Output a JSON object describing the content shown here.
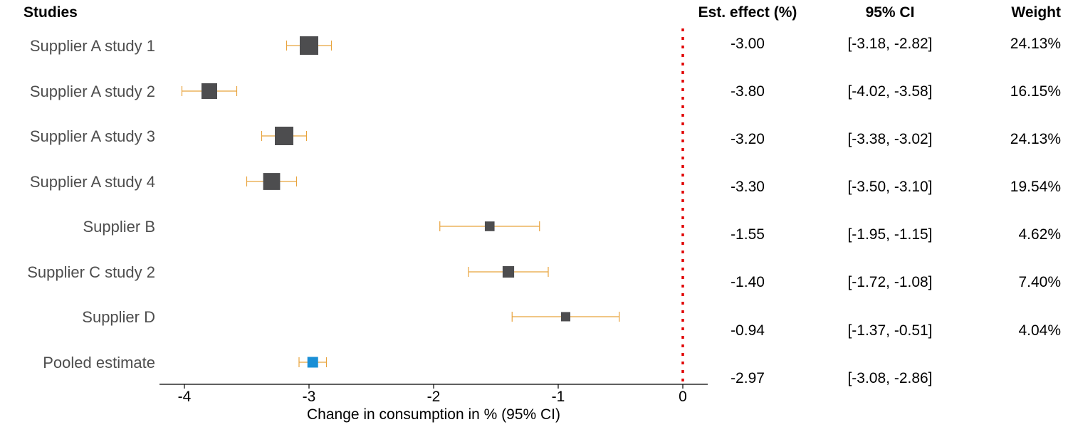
{
  "headers": {
    "studies": "Studies",
    "effect": "Est. effect (%)",
    "ci": "95% CI",
    "weight": "Weight"
  },
  "colors": {
    "study_box": "#4d4d4f",
    "pooled_box": "#1a8fd6",
    "ci_line": "#e8a33c",
    "reference_line": "#e00000",
    "label_text": "#4d4d4d"
  },
  "chart_data": {
    "type": "forest",
    "xlabel": "Change in consumption in % (95% CI)",
    "xlim": [
      -4.2,
      0.2
    ],
    "xticks": [
      -4,
      -3,
      -2,
      -1,
      0
    ],
    "reference_line": 0,
    "studies": [
      {
        "name": "Supplier A study 1",
        "estimate": -3.0,
        "ci_low": -3.18,
        "ci_high": -2.82,
        "effect_text": "-3.00",
        "ci_text": "[-3.18, -2.82]",
        "weight_text": "24.13%",
        "weight": 24.13
      },
      {
        "name": "Supplier A study 2",
        "estimate": -3.8,
        "ci_low": -4.02,
        "ci_high": -3.58,
        "effect_text": "-3.80",
        "ci_text": "[-4.02, -3.58]",
        "weight_text": "16.15%",
        "weight": 16.15
      },
      {
        "name": "Supplier A study 3",
        "estimate": -3.2,
        "ci_low": -3.38,
        "ci_high": -3.02,
        "effect_text": "-3.20",
        "ci_text": "[-3.38, -3.02]",
        "weight_text": "24.13%",
        "weight": 24.13
      },
      {
        "name": "Supplier A study 4",
        "estimate": -3.3,
        "ci_low": -3.5,
        "ci_high": -3.1,
        "effect_text": "-3.30",
        "ci_text": "[-3.50, -3.10]",
        "weight_text": "19.54%",
        "weight": 19.54
      },
      {
        "name": "Supplier B",
        "estimate": -1.55,
        "ci_low": -1.95,
        "ci_high": -1.15,
        "effect_text": "-1.55",
        "ci_text": "[-1.95, -1.15]",
        "weight_text": "4.62%",
        "weight": 4.62
      },
      {
        "name": "Supplier C study 2",
        "estimate": -1.4,
        "ci_low": -1.72,
        "ci_high": -1.08,
        "effect_text": "-1.40",
        "ci_text": "[-1.72, -1.08]",
        "weight_text": "7.40%",
        "weight": 7.4
      },
      {
        "name": "Supplier D",
        "estimate": -0.94,
        "ci_low": -1.37,
        "ci_high": -0.51,
        "effect_text": "-0.94",
        "ci_text": "[-1.37, -0.51]",
        "weight_text": "4.04%",
        "weight": 4.04
      }
    ],
    "pooled": {
      "name": "Pooled estimate",
      "estimate": -2.97,
      "ci_low": -3.08,
      "ci_high": -2.86,
      "effect_text": "-2.97",
      "ci_text": "[-3.08, -2.86]"
    }
  }
}
